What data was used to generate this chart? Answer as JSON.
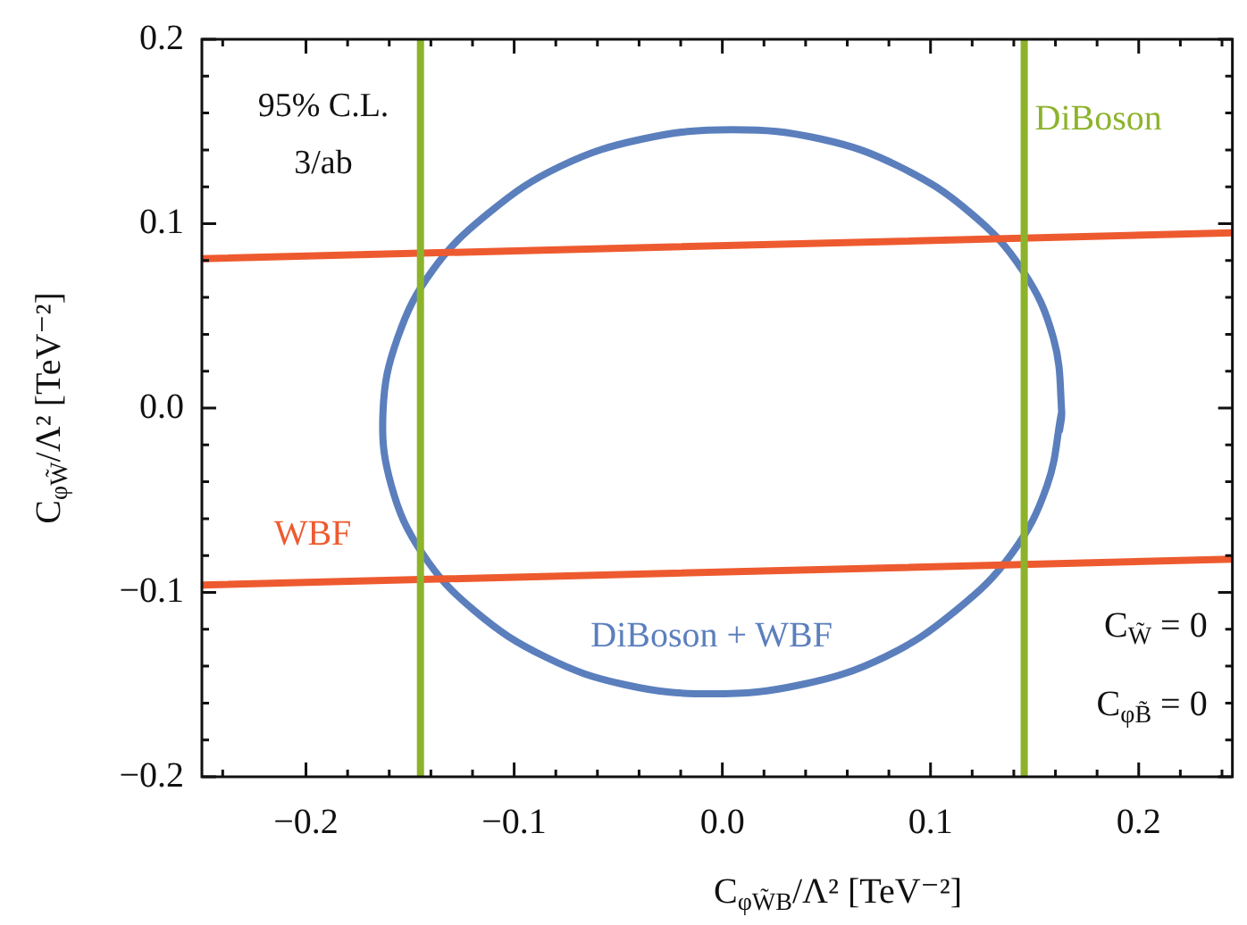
{
  "chart_data": {
    "type": "line",
    "xlabel": "C$_{φW̃B}$/Λ² [TeV⁻²]",
    "ylabel": "C$_{φW̃}$/Λ² [TeV⁻²]",
    "xlim": [
      -0.25,
      0.245
    ],
    "ylim": [
      -0.2,
      0.2
    ],
    "xticks": [
      {
        "value": -0.24,
        "label": null
      },
      {
        "value": -0.2,
        "label": "−0.2"
      },
      {
        "value": -0.18,
        "label": null
      },
      {
        "value": -0.16,
        "label": null
      },
      {
        "value": -0.14,
        "label": null
      },
      {
        "value": -0.12,
        "label": null
      },
      {
        "value": -0.1,
        "label": "−0.1"
      },
      {
        "value": -0.08,
        "label": null
      },
      {
        "value": -0.06,
        "label": null
      },
      {
        "value": -0.04,
        "label": null
      },
      {
        "value": -0.02,
        "label": null
      },
      {
        "value": 0,
        "label": "0.0"
      },
      {
        "value": 0.02,
        "label": null
      },
      {
        "value": 0.04,
        "label": null
      },
      {
        "value": 0.06,
        "label": null
      },
      {
        "value": 0.08,
        "label": null
      },
      {
        "value": 0.1,
        "label": "0.1"
      },
      {
        "value": 0.12,
        "label": null
      },
      {
        "value": 0.14,
        "label": null
      },
      {
        "value": 0.16,
        "label": null
      },
      {
        "value": 0.18,
        "label": null
      },
      {
        "value": 0.2,
        "label": "0.2"
      },
      {
        "value": 0.22,
        "label": null
      },
      {
        "value": 0.24,
        "label": null
      }
    ],
    "yticks": [
      {
        "value": -0.2,
        "label": "−0.2"
      },
      {
        "value": -0.18,
        "label": null
      },
      {
        "value": -0.16,
        "label": null
      },
      {
        "value": -0.14,
        "label": null
      },
      {
        "value": -0.12,
        "label": null
      },
      {
        "value": -0.1,
        "label": "−0.1"
      },
      {
        "value": -0.08,
        "label": null
      },
      {
        "value": -0.06,
        "label": null
      },
      {
        "value": -0.04,
        "label": null
      },
      {
        "value": -0.02,
        "label": null
      },
      {
        "value": 0,
        "label": "0.0"
      },
      {
        "value": 0.02,
        "label": null
      },
      {
        "value": 0.04,
        "label": null
      },
      {
        "value": 0.06,
        "label": null
      },
      {
        "value": 0.08,
        "label": null
      },
      {
        "value": 0.1,
        "label": "0.1"
      },
      {
        "value": 0.12,
        "label": null
      },
      {
        "value": 0.14,
        "label": null
      },
      {
        "value": 0.16,
        "label": null
      },
      {
        "value": 0.18,
        "label": null
      },
      {
        "value": 0.2,
        "label": "0.2"
      }
    ],
    "annotations": [
      "95% C.L.",
      "3/ab",
      "C$_{W̃}$ = 0",
      "C$_{φB̃}$ = 0"
    ],
    "ref_lines": [
      {
        "axis": "x",
        "value": -0.145,
        "color": "#8db32b"
      },
      {
        "axis": "x",
        "value": 0.145,
        "label": "DiBoson",
        "color": "#8db32b"
      }
    ],
    "series": [
      {
        "color": "#ee5a2f",
        "x": [
          -0.25,
          0.245
        ],
        "values": [
          0.081,
          0.095
        ]
      },
      {
        "name": "WBF",
        "color": "#ee5a2f",
        "x": [
          -0.25,
          0.245
        ],
        "values": [
          -0.096,
          -0.082
        ]
      },
      {
        "name": "DiBoson + WBF",
        "color": "#5b7fbd",
        "x": [
          0.162,
          0.163,
          0.159,
          0.144,
          0.119,
          0.085,
          0.047,
          0.005,
          -0.038,
          -0.078,
          -0.112,
          -0.139,
          -0.156,
          -0.163,
          -0.159,
          -0.144,
          -0.119,
          -0.085,
          -0.047,
          -0.005,
          0.038,
          0.078,
          0.112,
          0.139,
          0.156,
          0.163
        ],
        "values": [
          -0.012,
          -0.002,
          0.038,
          0.075,
          0.106,
          0.131,
          0.146,
          0.151,
          0.146,
          0.131,
          0.106,
          0.075,
          0.038,
          -0.002,
          -0.042,
          -0.079,
          -0.11,
          -0.135,
          -0.15,
          -0.155,
          -0.15,
          -0.135,
          -0.11,
          -0.079,
          -0.042,
          -0.002
        ]
      }
    ]
  }
}
